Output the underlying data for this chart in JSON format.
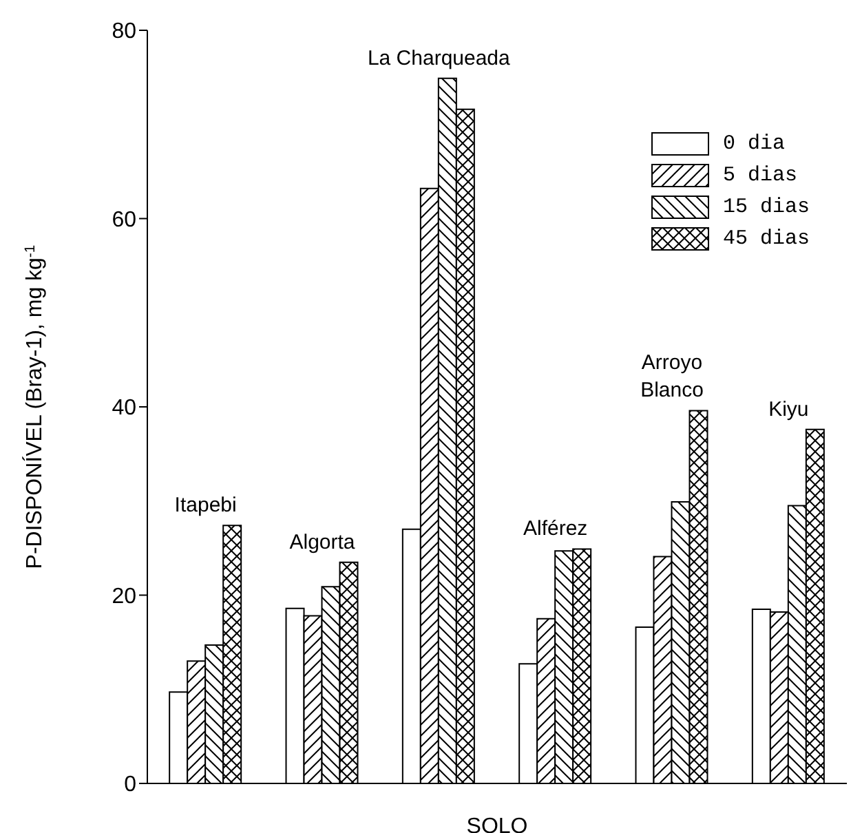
{
  "chart_data": {
    "type": "bar",
    "xlabel": "SOLO",
    "ylabel": "P-DISPONÍVEL (Bray-1), mg kg$^{-1}$",
    "categories": [
      null,
      null,
      null,
      null,
      null,
      null
    ],
    "series": [
      {
        "name": "0 dia",
        "color": "#000000",
        "values": [
          9.7,
          18.6,
          27.0,
          12.7,
          16.6,
          18.5
        ]
      },
      {
        "name": "5 dias",
        "color": "#000000",
        "values": [
          13.0,
          17.8,
          63.2,
          17.5,
          24.1,
          18.2
        ]
      },
      {
        "name": "15 dias",
        "color": "#000000",
        "values": [
          14.7,
          20.9,
          74.9,
          24.7,
          29.9,
          29.5
        ]
      },
      {
        "name": "45 dias",
        "color": "#000000",
        "values": [
          27.4,
          23.5,
          71.6,
          24.9,
          39.6,
          37.6
        ]
      }
    ],
    "annotations": [
      "Itapebi",
      "Algorta",
      "La Charqueada",
      "Alférez",
      "Arroyo\nBlanco",
      "Kiyu"
    ],
    "ylim": [
      0,
      80
    ],
    "yticks": [
      0,
      20,
      40,
      60,
      80
    ],
    "grid": false,
    "legend": "top right"
  }
}
